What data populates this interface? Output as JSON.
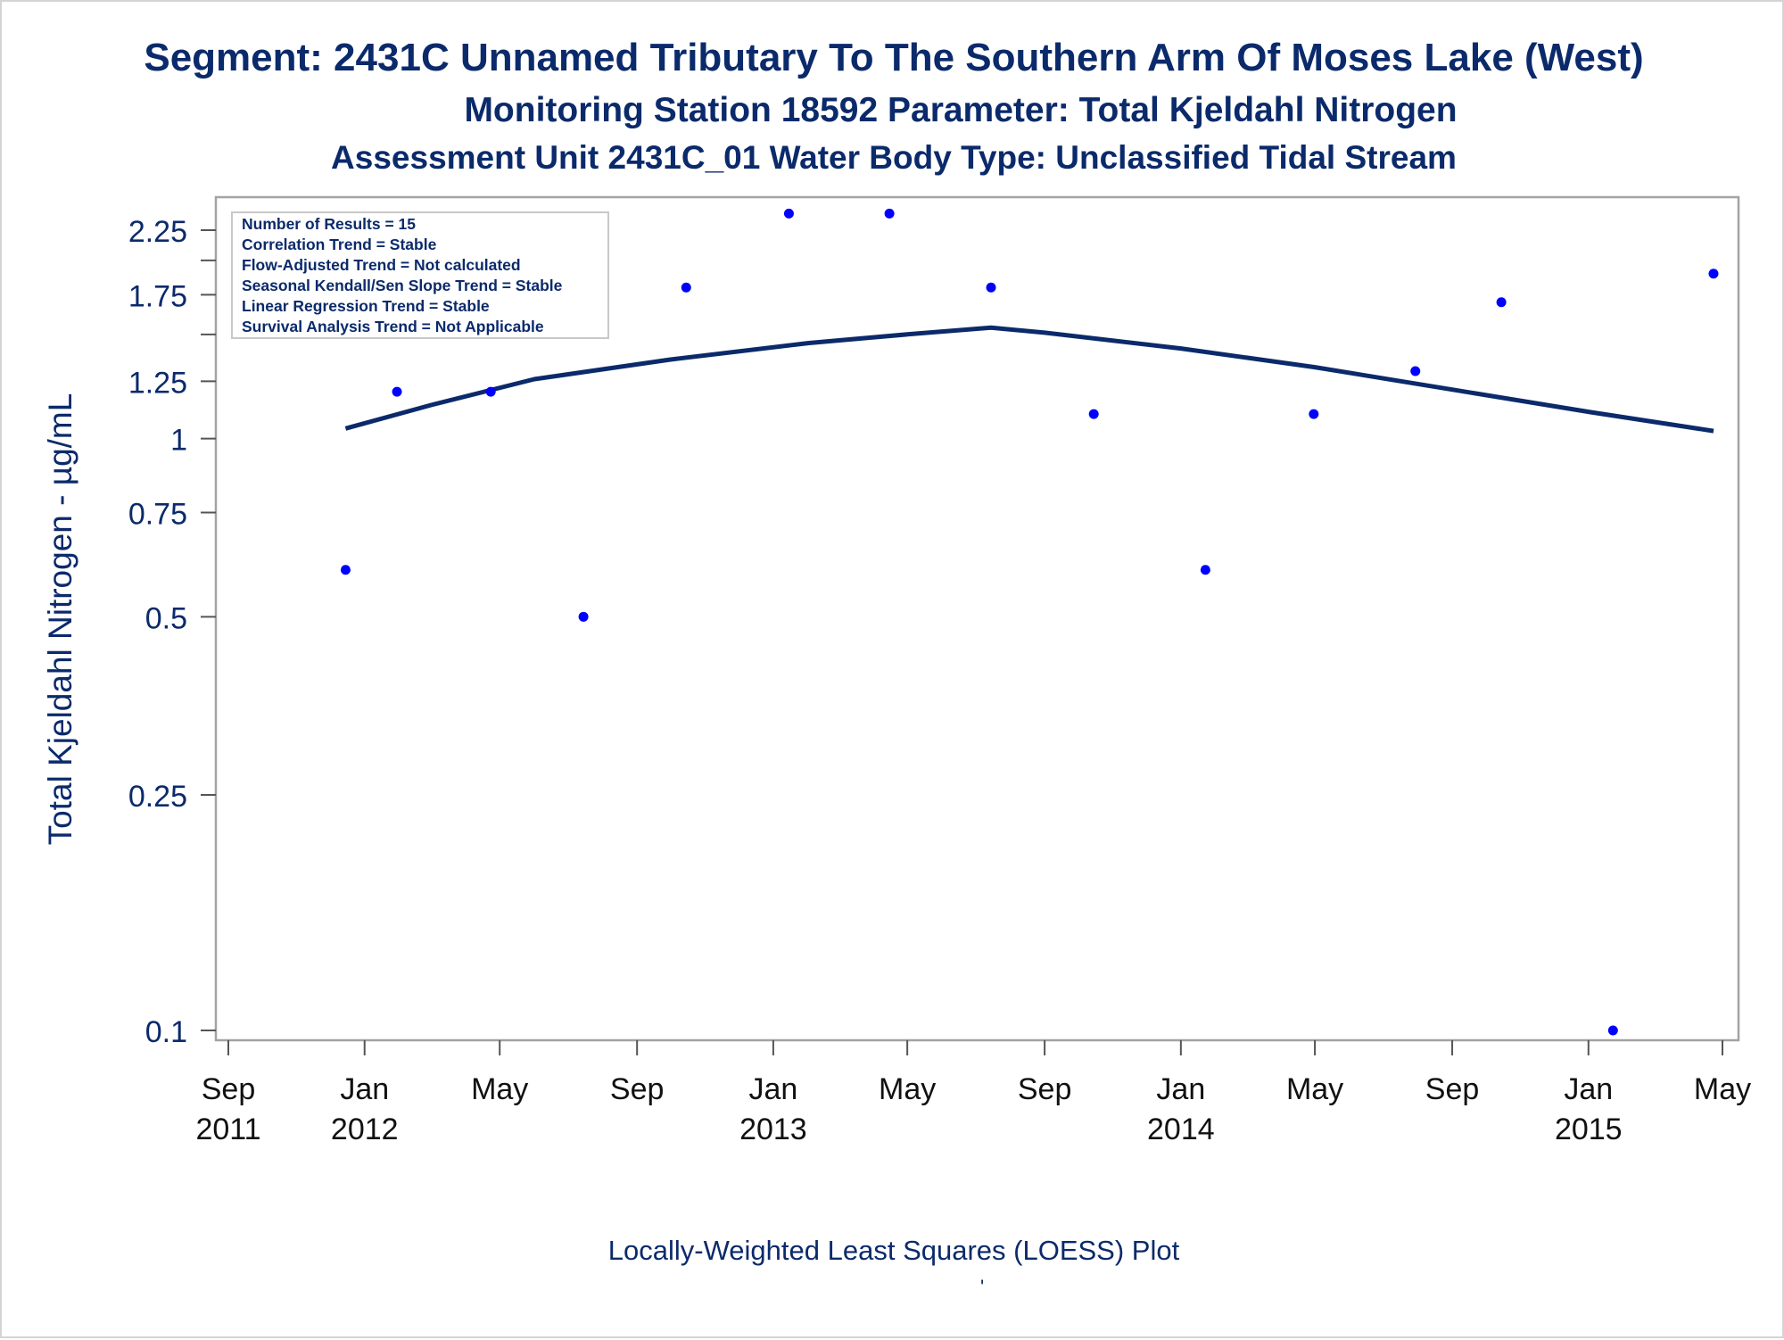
{
  "chart_data": {
    "type": "scatter",
    "title": "Segment: 2431C  Unnamed Tributary To The Southern Arm Of Moses Lake (West)",
    "subtitle": "Monitoring Station 18592 Parameter: Total Kjeldahl Nitrogen",
    "subtitle2": "Assessment Unit 2431C_01   Water Body Type: Unclassified Tidal Stream",
    "ylabel": "Total Kjeldahl Nitrogen -  µg/mL",
    "xlabel": "Locally-Weighted Least Squares (LOESS) Plot",
    "footer_mark": "'",
    "y_scale": "log",
    "ylim": [
      0.095,
      2.55
    ],
    "xlim": [
      "2011-09-01",
      "2015-05-01"
    ],
    "y_ticks": [
      {
        "value": 2.25,
        "label": "2.25"
      },
      {
        "value": 1.75,
        "label": "1.75"
      },
      {
        "value": 1.25,
        "label": "1.25"
      },
      {
        "value": 1,
        "label": "1"
      },
      {
        "value": 0.75,
        "label": "0.75"
      },
      {
        "value": 0.5,
        "label": "0.5"
      },
      {
        "value": 0.25,
        "label": "0.25"
      },
      {
        "value": 0.1,
        "label": "0.1"
      }
    ],
    "y_minor_ticks": [
      2.0,
      1.5
    ],
    "x_ticks": [
      {
        "date": "2011-09-01",
        "line1": "Sep",
        "line2": "2011"
      },
      {
        "date": "2012-01-01",
        "line1": "Jan",
        "line2": "2012"
      },
      {
        "date": "2012-05-01",
        "line1": "May",
        "line2": ""
      },
      {
        "date": "2012-09-01",
        "line1": "Sep",
        "line2": ""
      },
      {
        "date": "2013-01-01",
        "line1": "Jan",
        "line2": "2013"
      },
      {
        "date": "2013-05-01",
        "line1": "May",
        "line2": ""
      },
      {
        "date": "2013-09-01",
        "line1": "Sep",
        "line2": ""
      },
      {
        "date": "2014-01-01",
        "line1": "Jan",
        "line2": "2014"
      },
      {
        "date": "2014-05-01",
        "line1": "May",
        "line2": ""
      },
      {
        "date": "2014-09-01",
        "line1": "Sep",
        "line2": ""
      },
      {
        "date": "2015-01-01",
        "line1": "Jan",
        "line2": "2015"
      },
      {
        "date": "2015-05-01",
        "line1": "May",
        "line2": ""
      }
    ],
    "points": [
      {
        "date": "2011-12-15",
        "value": 0.6
      },
      {
        "date": "2012-01-30",
        "value": 1.2
      },
      {
        "date": "2012-04-23",
        "value": 1.2
      },
      {
        "date": "2012-07-15",
        "value": 0.5
      },
      {
        "date": "2012-10-15",
        "value": 1.8
      },
      {
        "date": "2013-01-15",
        "value": 2.4
      },
      {
        "date": "2013-04-15",
        "value": 2.4
      },
      {
        "date": "2013-07-15",
        "value": 1.8
      },
      {
        "date": "2013-10-15",
        "value": 1.1
      },
      {
        "date": "2014-01-23",
        "value": 0.6
      },
      {
        "date": "2014-04-30",
        "value": 1.1
      },
      {
        "date": "2014-07-30",
        "value": 1.3
      },
      {
        "date": "2014-10-15",
        "value": 1.7
      },
      {
        "date": "2015-01-23",
        "value": 0.1
      },
      {
        "date": "2015-04-23",
        "value": 1.9
      }
    ],
    "loess": [
      {
        "date": "2011-12-15",
        "value": 1.04
      },
      {
        "date": "2012-03-01",
        "value": 1.14
      },
      {
        "date": "2012-06-01",
        "value": 1.26
      },
      {
        "date": "2012-10-01",
        "value": 1.36
      },
      {
        "date": "2013-02-01",
        "value": 1.45
      },
      {
        "date": "2013-05-01",
        "value": 1.5
      },
      {
        "date": "2013-07-15",
        "value": 1.54
      },
      {
        "date": "2013-09-01",
        "value": 1.51
      },
      {
        "date": "2014-01-01",
        "value": 1.42
      },
      {
        "date": "2014-05-01",
        "value": 1.32
      },
      {
        "date": "2014-09-01",
        "value": 1.21
      },
      {
        "date": "2015-01-01",
        "value": 1.11
      },
      {
        "date": "2015-04-23",
        "value": 1.03
      }
    ],
    "legend_box": [
      "Number of Results = 15",
      "Correlation Trend = Stable",
      "Flow-Adjusted Trend = Not calculated",
      "Seasonal Kendall/Sen Slope Trend = Stable",
      "Linear Regression Trend = Stable",
      "Survival Analysis Trend = Not Applicable"
    ],
    "legend_placement": "top-left",
    "colors": {
      "text": "#0b2a6b",
      "points": "#0000ff",
      "loess_line": "#0b2a6b",
      "frame": "#a3a3a3"
    }
  }
}
